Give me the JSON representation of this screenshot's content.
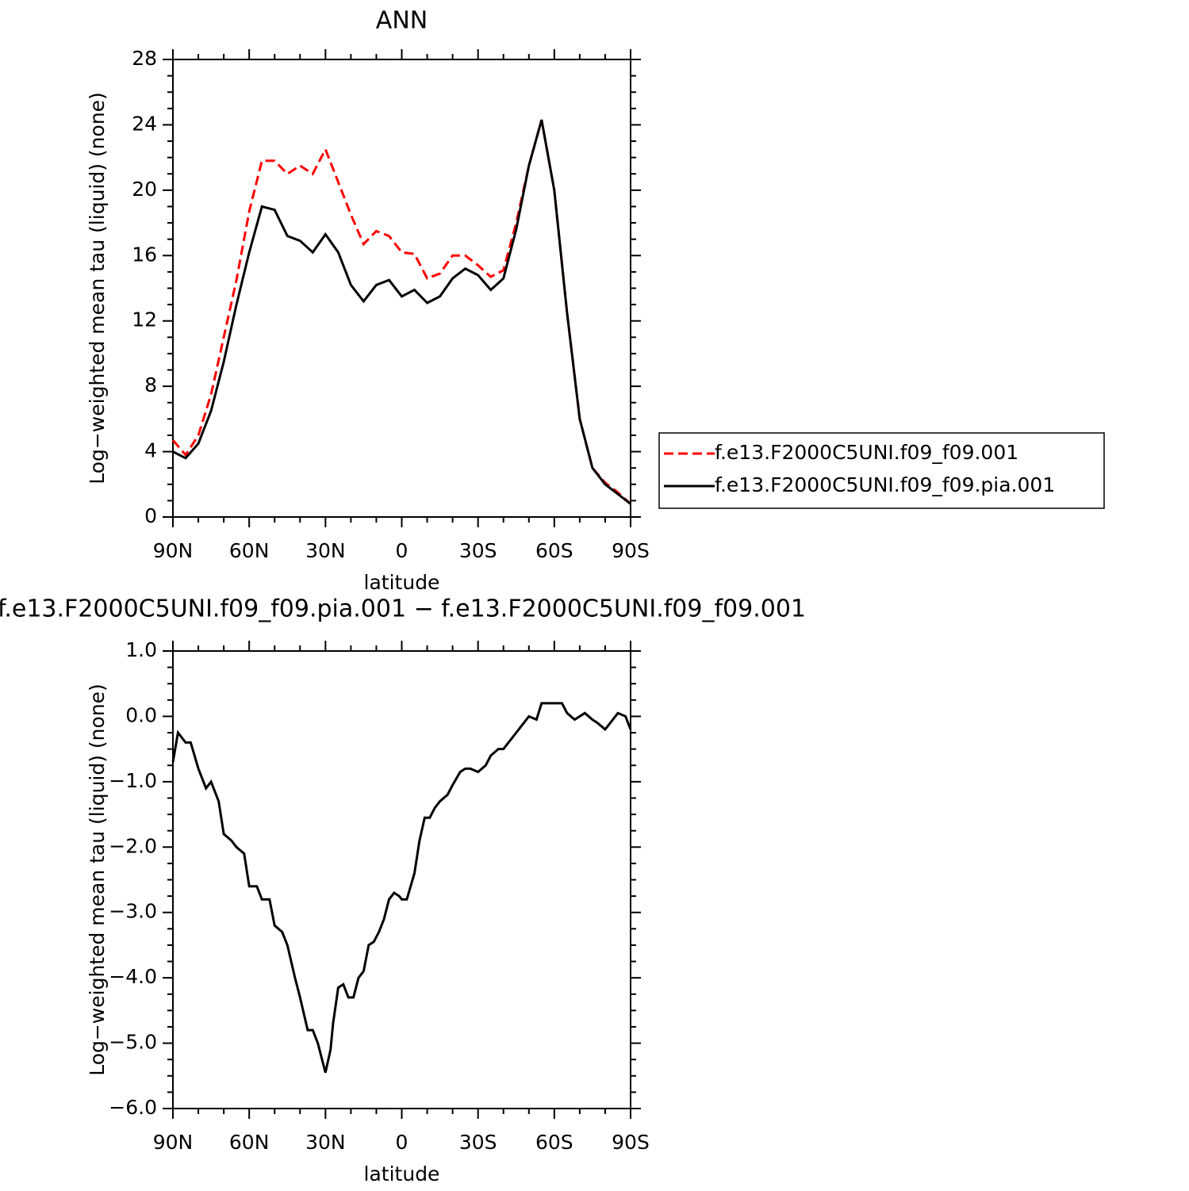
{
  "chart_data": [
    {
      "type": "line",
      "title": "ANN",
      "x_label": "latitude",
      "y_label": "Log−weighted mean tau (liquid) (none)",
      "x": [
        90,
        85,
        80,
        75,
        70,
        65,
        60,
        55,
        50,
        45,
        40,
        35,
        30,
        25,
        20,
        15,
        10,
        5,
        0,
        -5,
        -10,
        -15,
        -20,
        -25,
        -30,
        -35,
        -40,
        -45,
        -50,
        -55,
        -60,
        -65,
        -70,
        -75,
        -80,
        -85,
        -90
      ],
      "series": [
        {
          "name": "f.e13.F2000C5UNI.f09_f09.001",
          "color": "#ff0000",
          "dash": "dashed",
          "values": [
            4.7,
            3.8,
            5.0,
            7.5,
            11.0,
            14.5,
            18.7,
            21.8,
            21.8,
            21.0,
            21.5,
            21.0,
            22.5,
            20.5,
            18.5,
            16.7,
            17.5,
            17.2,
            16.2,
            16.1,
            14.6,
            14.9,
            16.0,
            16.0,
            15.4,
            14.7,
            15.1,
            18.0,
            21.5,
            24.3,
            20.0,
            12.5,
            6.0,
            3.0,
            2.1,
            1.5,
            0.8
          ]
        },
        {
          "name": "f.e13.F2000C5UNI.f09_f09.pia.001",
          "color": "#000000",
          "dash": "solid",
          "values": [
            4.0,
            3.6,
            4.5,
            6.5,
            9.5,
            13.0,
            16.2,
            19.0,
            18.8,
            17.2,
            16.9,
            16.2,
            17.3,
            16.2,
            14.2,
            13.2,
            14.2,
            14.5,
            13.5,
            13.9,
            13.1,
            13.5,
            14.6,
            15.2,
            14.8,
            13.9,
            14.6,
            17.6,
            21.5,
            24.3,
            20.0,
            12.5,
            6.0,
            3.0,
            2.0,
            1.4,
            0.8
          ]
        }
      ],
      "xlim": [
        90,
        -90
      ],
      "xticks": [
        {
          "value": 90,
          "label": "90N"
        },
        {
          "value": 60,
          "label": "60N"
        },
        {
          "value": 30,
          "label": "30N"
        },
        0,
        {
          "value": -30,
          "label": "30S"
        },
        {
          "value": -60,
          "label": "60S"
        },
        {
          "value": -90,
          "label": "90S"
        }
      ],
      "ylim": [
        0,
        28
      ],
      "yticks": [
        0,
        4,
        8,
        12,
        16,
        20,
        24,
        28
      ],
      "legend": "right"
    },
    {
      "type": "line",
      "title": "f.e13.F2000C5UNI.f09_f09.pia.001 − f.e13.F2000C5UNI.f09_f09.001",
      "x_label": "latitude",
      "y_label": "Log−weighted mean tau (liquid) (none)",
      "x": [
        90,
        88,
        85,
        83,
        80,
        77,
        75,
        72,
        70,
        67,
        65,
        62,
        60,
        57,
        55,
        52,
        50,
        47,
        45,
        42,
        40,
        37,
        35,
        33,
        30,
        28,
        27,
        25,
        23,
        21,
        19,
        17,
        15,
        13,
        11,
        9,
        7,
        5,
        3,
        1,
        0,
        -2,
        -5,
        -7,
        -9,
        -11,
        -13,
        -15,
        -18,
        -20,
        -23,
        -25,
        -27,
        -30,
        -33,
        -35,
        -38,
        -40,
        -43,
        -45,
        -48,
        -50,
        -53,
        -55,
        -58,
        -60,
        -63,
        -65,
        -68,
        -70,
        -72,
        -75,
        -77,
        -80,
        -82,
        -85,
        -88,
        -90
      ],
      "series": [
        {
          "color": "#000000",
          "dash": "solid",
          "values": [
            -0.7,
            -0.25,
            -0.4,
            -0.4,
            -0.8,
            -1.1,
            -1.0,
            -1.3,
            -1.8,
            -1.9,
            -2.0,
            -2.1,
            -2.6,
            -2.6,
            -2.8,
            -2.8,
            -3.2,
            -3.3,
            -3.5,
            -4.0,
            -4.3,
            -4.8,
            -4.8,
            -5.0,
            -5.45,
            -5.1,
            -4.7,
            -4.15,
            -4.1,
            -4.3,
            -4.3,
            -4.0,
            -3.9,
            -3.5,
            -3.45,
            -3.3,
            -3.1,
            -2.8,
            -2.7,
            -2.75,
            -2.8,
            -2.8,
            -2.4,
            -1.9,
            -1.55,
            -1.55,
            -1.4,
            -1.3,
            -1.2,
            -1.05,
            -0.85,
            -0.8,
            -0.8,
            -0.85,
            -0.75,
            -0.6,
            -0.5,
            -0.5,
            -0.35,
            -0.25,
            -0.1,
            0.0,
            -0.05,
            0.2,
            0.2,
            0.2,
            0.2,
            0.05,
            -0.05,
            0.0,
            0.05,
            -0.05,
            -0.1,
            -0.2,
            -0.1,
            0.05,
            0.0,
            -0.2
          ]
        }
      ],
      "xlim": [
        90,
        -90
      ],
      "xticks": [
        {
          "value": 90,
          "label": "90N"
        },
        {
          "value": 60,
          "label": "60N"
        },
        {
          "value": 30,
          "label": "30N"
        },
        0,
        {
          "value": -30,
          "label": "30S"
        },
        {
          "value": -60,
          "label": "60S"
        },
        {
          "value": -90,
          "label": "90S"
        }
      ],
      "ylim": [
        -6,
        1
      ],
      "yticks": [
        {
          "value": 1,
          "label": "1.0"
        },
        {
          "value": 0,
          "label": "0.0"
        },
        {
          "value": -1,
          "label": "−1.0"
        },
        {
          "value": -2,
          "label": "−2.0"
        },
        {
          "value": -3,
          "label": "−3.0"
        },
        {
          "value": -4,
          "label": "−4.0"
        },
        {
          "value": -5,
          "label": "−5.0"
        },
        {
          "value": -6,
          "label": "−6.0"
        }
      ]
    }
  ]
}
